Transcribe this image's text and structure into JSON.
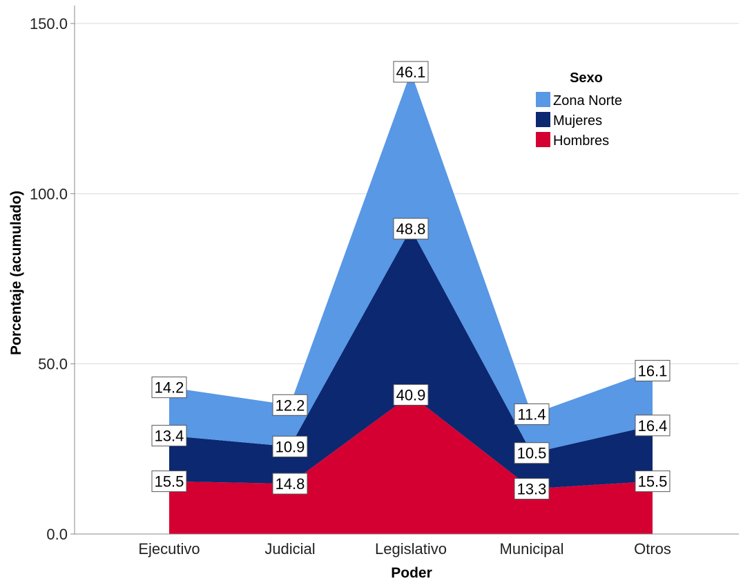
{
  "chart_data": {
    "type": "area",
    "stacked": true,
    "categories": [
      "Ejecutivo",
      "Judicial",
      "Legislativo",
      "Municipal",
      "Otros"
    ],
    "series": [
      {
        "name": "Hombres",
        "values": [
          15.5,
          14.8,
          40.9,
          13.3,
          15.5
        ],
        "color": "#d50032"
      },
      {
        "name": "Mujeres",
        "values": [
          13.4,
          10.9,
          48.8,
          10.5,
          16.4
        ],
        "color": "#0b2870"
      },
      {
        "name": "Zona Norte",
        "values": [
          14.2,
          12.2,
          46.1,
          11.4,
          16.1
        ],
        "color": "#5898e5"
      }
    ],
    "xlabel": "Poder",
    "ylabel": "Porcentaje (acumulado)",
    "ylim": [
      0,
      150
    ],
    "yticks": [
      0,
      50,
      100,
      150
    ],
    "ytick_labels": [
      "0.0",
      "50.0",
      "100.0",
      "150.0"
    ],
    "grid": "horizontal",
    "legend": {
      "title": "Sexo",
      "placement": "top-right",
      "entries": [
        "Zona Norte",
        "Mujeres",
        "Hombres"
      ]
    }
  }
}
